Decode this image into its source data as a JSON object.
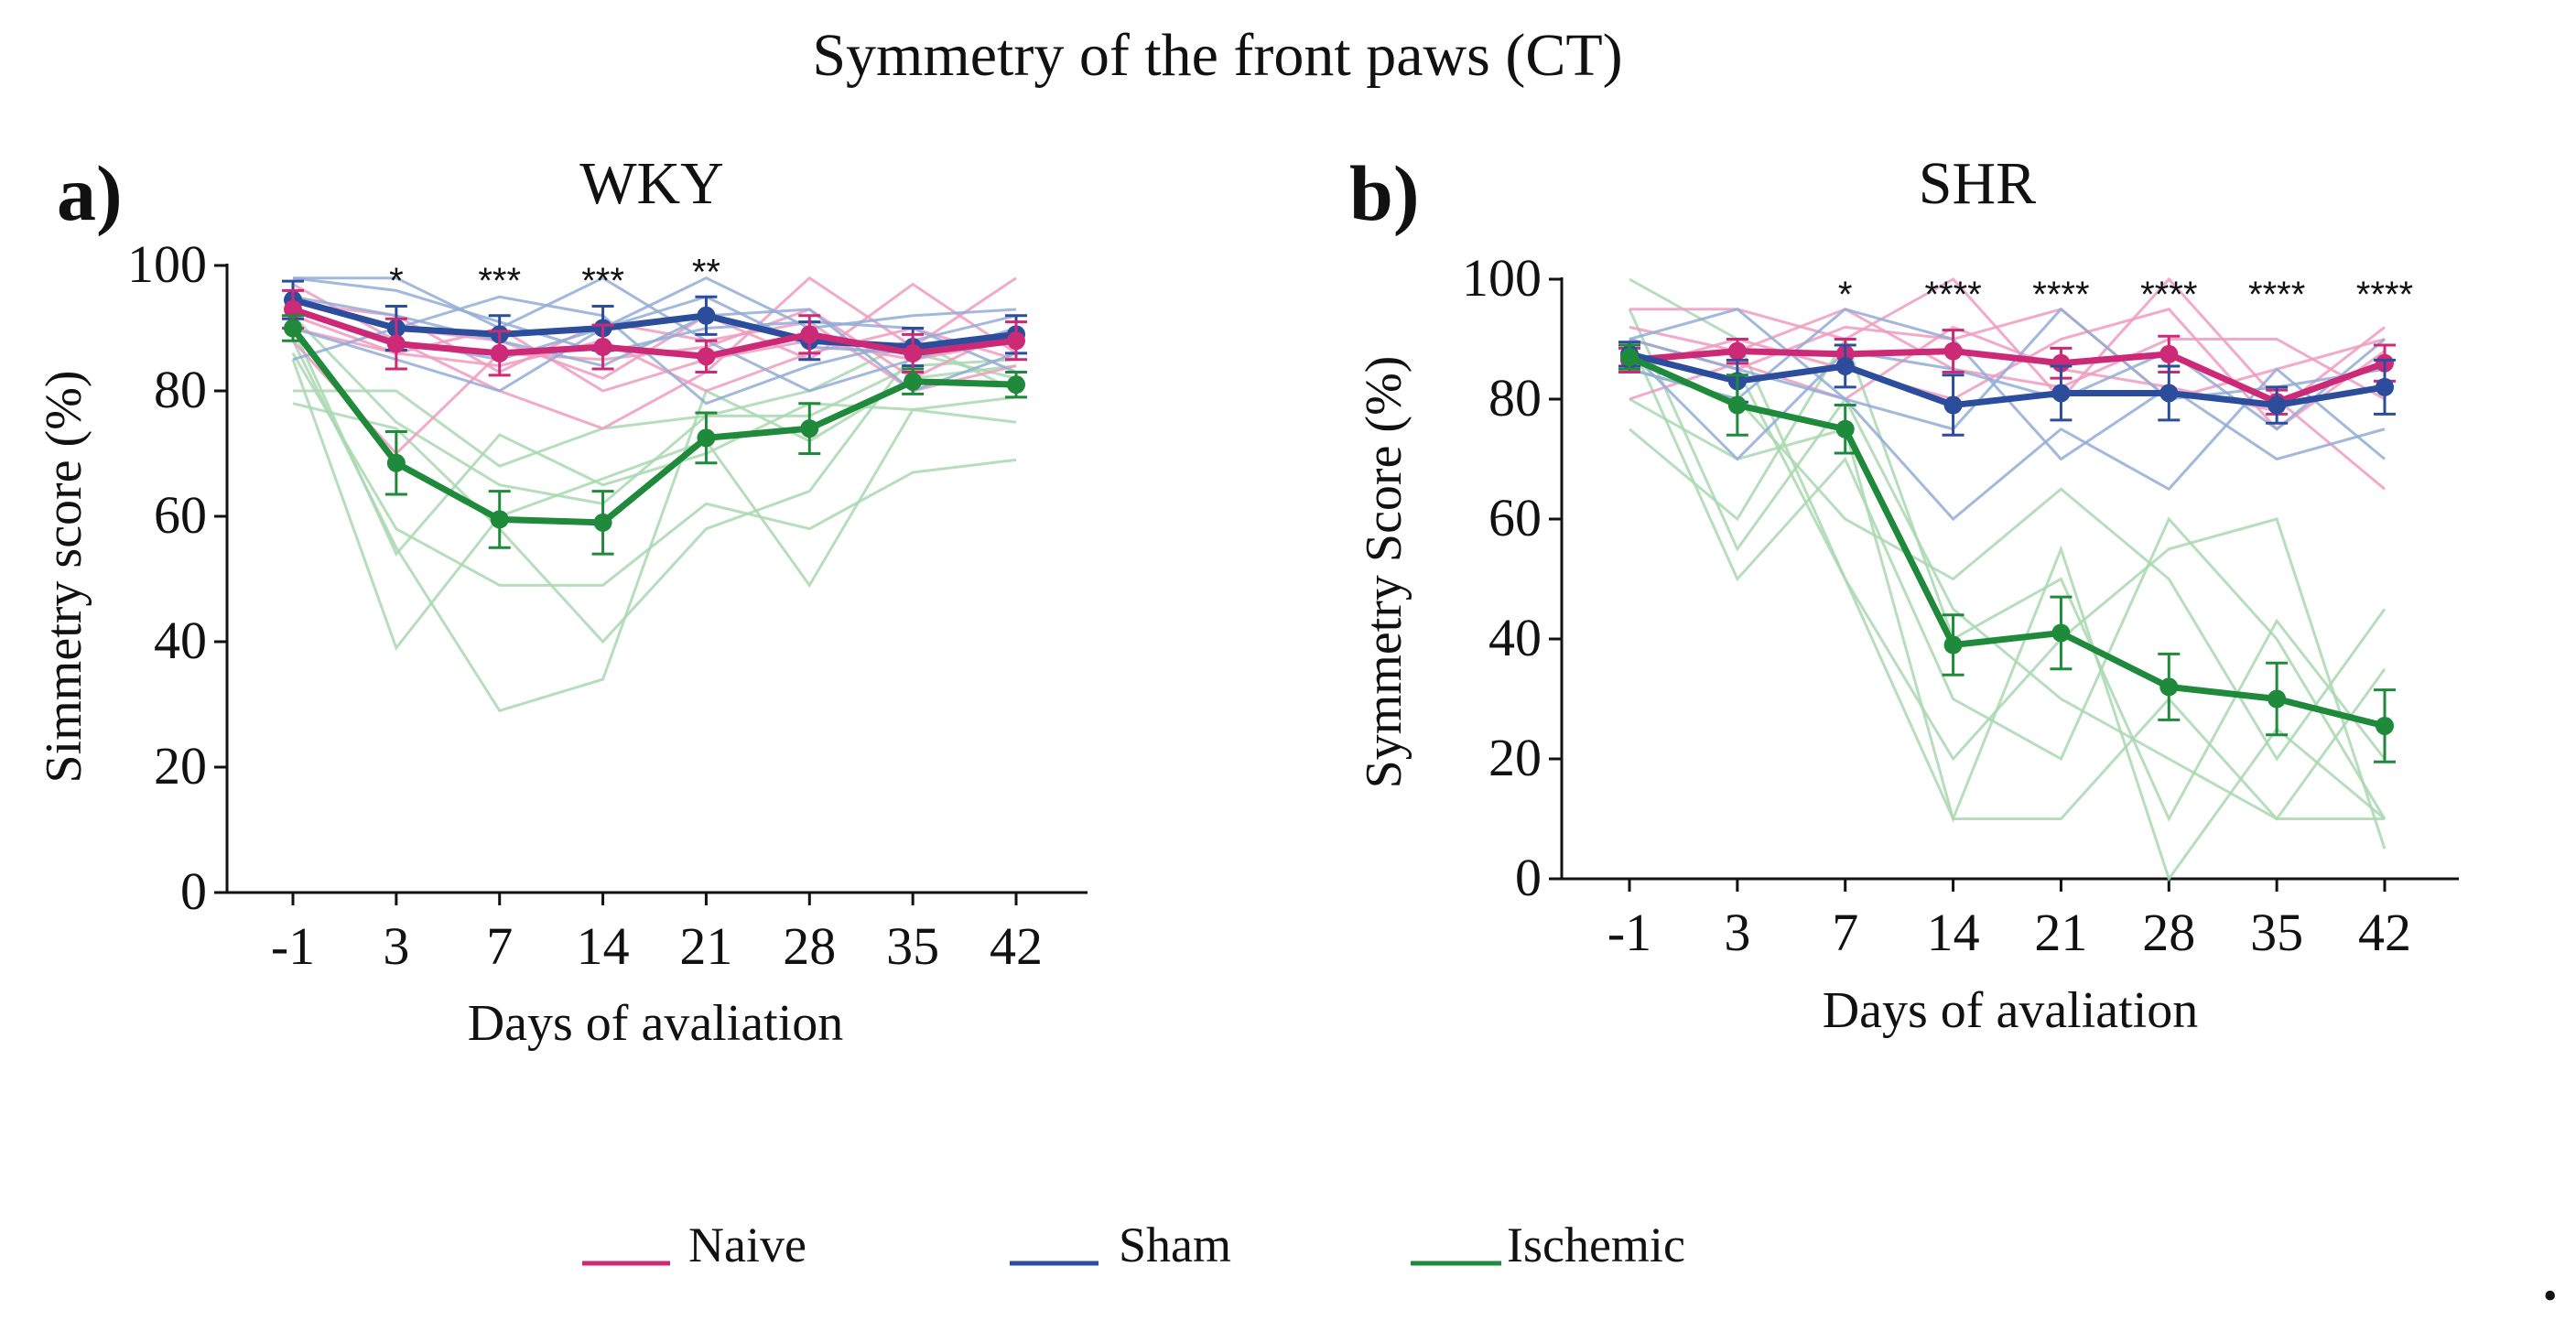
{
  "title": "Symmetry of the front paws (CT)",
  "colors": {
    "naive": "#cc2a77",
    "sham": "#2b4d9c",
    "ischemic": "#1f8a3b",
    "naive_light": "#ef9cc0",
    "sham_light": "#92acd6",
    "ischemic_light": "#a9d8b0",
    "axis": "#111111"
  },
  "legend": [
    {
      "key": "naive",
      "label": "Naive"
    },
    {
      "key": "sham",
      "label": "Sham"
    },
    {
      "key": "ischemic",
      "label": "Ischemic"
    }
  ],
  "trailing_mark": "•",
  "chart_data": [
    {
      "type": "line",
      "panel_label": "a)",
      "title": "WKY",
      "xlabel": "Days of avaliation",
      "ylabel": "Simmetry score (%)",
      "categories": [
        "-1",
        "3",
        "7",
        "14",
        "21",
        "28",
        "35",
        "42"
      ],
      "ylim": [
        0,
        100
      ],
      "yticks": [
        0,
        20,
        40,
        60,
        80,
        100
      ],
      "significance": [
        "",
        "*",
        "***",
        "***",
        "**",
        "",
        "",
        ""
      ],
      "series": [
        {
          "key": "sham",
          "name": "Sham",
          "values": [
            94.5,
            90,
            89,
            90,
            92,
            88,
            87,
            89
          ],
          "errors": [
            3,
            3.5,
            3,
            3.5,
            3,
            3,
            3,
            3
          ]
        },
        {
          "key": "naive",
          "name": "Naive",
          "values": [
            93,
            87.5,
            86,
            87,
            85.5,
            89,
            86,
            88
          ],
          "errors": [
            3,
            4,
            3.5,
            3.5,
            2.5,
            3,
            3,
            3
          ]
        },
        {
          "key": "ischemic",
          "name": "Ischemic",
          "values": [
            90,
            68.5,
            59.5,
            59,
            72.5,
            74,
            81.5,
            81
          ],
          "errors": [
            2,
            5,
            4.5,
            5,
            4,
            4,
            2,
            2
          ]
        }
      ],
      "individual": {
        "naive": [
          [
            97,
            88,
            80,
            74,
            83,
            98,
            87,
            98
          ],
          [
            92,
            86,
            84,
            88,
            80,
            86,
            90,
            85
          ],
          [
            88,
            70,
            86,
            85,
            87,
            93,
            82,
            90
          ],
          [
            95,
            90,
            88,
            82,
            92,
            85,
            97,
            86
          ],
          [
            90,
            86,
            90,
            80,
            85,
            88,
            85,
            88
          ],
          [
            94,
            92,
            83,
            91,
            88,
            91,
            80,
            84
          ]
        ],
        "sham": [
          [
            98,
            98,
            90,
            98,
            88,
            80,
            85,
            90
          ],
          [
            90,
            85,
            80,
            90,
            98,
            90,
            92,
            93
          ],
          [
            95,
            92,
            88,
            84,
            92,
            93,
            80,
            86
          ],
          [
            85,
            90,
            95,
            92,
            78,
            84,
            88,
            92
          ],
          [
            93,
            88,
            85,
            90,
            95,
            87,
            86,
            88
          ],
          [
            98,
            96,
            91,
            86,
            90,
            91,
            90,
            83
          ]
        ],
        "ischemic": [
          [
            88,
            55,
            29,
            34,
            80,
            72,
            82,
            84
          ],
          [
            85,
            39,
            60,
            66,
            72,
            49,
            77,
            79
          ],
          [
            92,
            75,
            65,
            62,
            76,
            80,
            88,
            80
          ],
          [
            78,
            74,
            58,
            40,
            58,
            64,
            86,
            82
          ],
          [
            90,
            54,
            73,
            65,
            70,
            78,
            77,
            75
          ],
          [
            86,
            58,
            49,
            49,
            62,
            58,
            67,
            69
          ],
          [
            80,
            80,
            68,
            74,
            76,
            76,
            84,
            85
          ]
        ]
      }
    },
    {
      "type": "line",
      "panel_label": "b)",
      "title": "SHR",
      "xlabel": "Days of avaliation",
      "ylabel": "Symmetry Score (%)",
      "categories": [
        "-1",
        "3",
        "7",
        "14",
        "21",
        "28",
        "35",
        "42"
      ],
      "ylim": [
        0,
        100
      ],
      "yticks": [
        0,
        20,
        40,
        60,
        80,
        100
      ],
      "significance": [
        "",
        "",
        "*",
        "****",
        "****",
        "****",
        "****",
        "****"
      ],
      "series": [
        {
          "key": "naive",
          "name": "Naive",
          "values": [
            86.5,
            88,
            87.5,
            88,
            86,
            87.5,
            79.5,
            86
          ],
          "errors": [
            2,
            2,
            2.5,
            3.5,
            2.5,
            3,
            2,
            3
          ]
        },
        {
          "key": "sham",
          "name": "Sham",
          "values": [
            87.5,
            83,
            85.5,
            79,
            81,
            81,
            79,
            82
          ],
          "errors": [
            2,
            3.5,
            3.5,
            5,
            4.5,
            4.5,
            3,
            4.5
          ]
        },
        {
          "key": "ischemic",
          "name": "Ischemic",
          "values": [
            87,
            79,
            75,
            39,
            41,
            32,
            30,
            25.5
          ],
          "errors": [
            2,
            5,
            4,
            5,
            6,
            5.5,
            6,
            6
          ]
        }
      ],
      "individual": {
        "naive": [
          [
            95,
            95,
            90,
            100,
            80,
            100,
            80,
            65
          ],
          [
            90,
            85,
            92,
            90,
            95,
            80,
            85,
            90
          ],
          [
            85,
            90,
            85,
            80,
            90,
            95,
            75,
            88
          ],
          [
            92,
            88,
            95,
            85,
            82,
            90,
            90,
            80
          ],
          [
            80,
            86,
            80,
            92,
            85,
            82,
            78,
            92
          ]
        ],
        "sham": [
          [
            90,
            95,
            80,
            60,
            75,
            65,
            85,
            70
          ],
          [
            88,
            70,
            88,
            85,
            80,
            88,
            75,
            90
          ],
          [
            85,
            80,
            95,
            90,
            70,
            82,
            70,
            75
          ],
          [
            90,
            85,
            80,
            75,
            95,
            80,
            82,
            85
          ]
        ],
        "ischemic": [
          [
            100,
            90,
            50,
            10,
            10,
            30,
            10,
            10
          ],
          [
            90,
            50,
            70,
            30,
            20,
            60,
            40,
            10
          ],
          [
            85,
            80,
            60,
            50,
            65,
            50,
            20,
            45
          ],
          [
            75,
            60,
            90,
            40,
            50,
            10,
            43,
            20
          ],
          [
            95,
            55,
            80,
            45,
            30,
            20,
            10,
            35
          ],
          [
            80,
            70,
            75,
            10,
            55,
            0,
            25,
            10
          ],
          [
            90,
            85,
            50,
            20,
            40,
            55,
            60,
            5
          ]
        ]
      }
    }
  ]
}
